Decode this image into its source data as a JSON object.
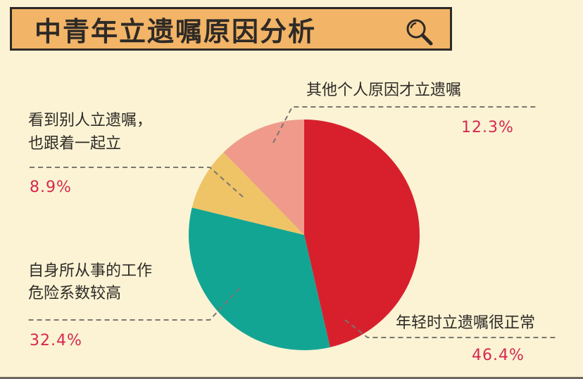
{
  "chart_data": {
    "type": "pie",
    "title": "中青年立遗嘱原因分析",
    "slices": [
      {
        "label": "年轻时立遗嘱很正常",
        "value": 46.4,
        "display": "46.4%",
        "color": "#d8202d"
      },
      {
        "label": "自身所从事的工作危险系数较高",
        "label_lines": [
          "自身所从事的工作",
          "危险系数较高"
        ],
        "value": 32.4,
        "display": "32.4%",
        "color": "#13a594"
      },
      {
        "label": "看到别人立遗嘱，也跟着一起立",
        "label_lines": [
          "看到别人立遗嘱，",
          "也跟着一起立"
        ],
        "value": 8.9,
        "display": "8.9%",
        "color": "#eec466"
      },
      {
        "label": "其他个人原因才立遗嘱",
        "value": 12.3,
        "display": "12.3%",
        "color": "#ef9a8b"
      }
    ],
    "start_angle": "12 o'clock",
    "direction": "clockwise"
  },
  "icons": {
    "title": "magnifier-icon"
  }
}
